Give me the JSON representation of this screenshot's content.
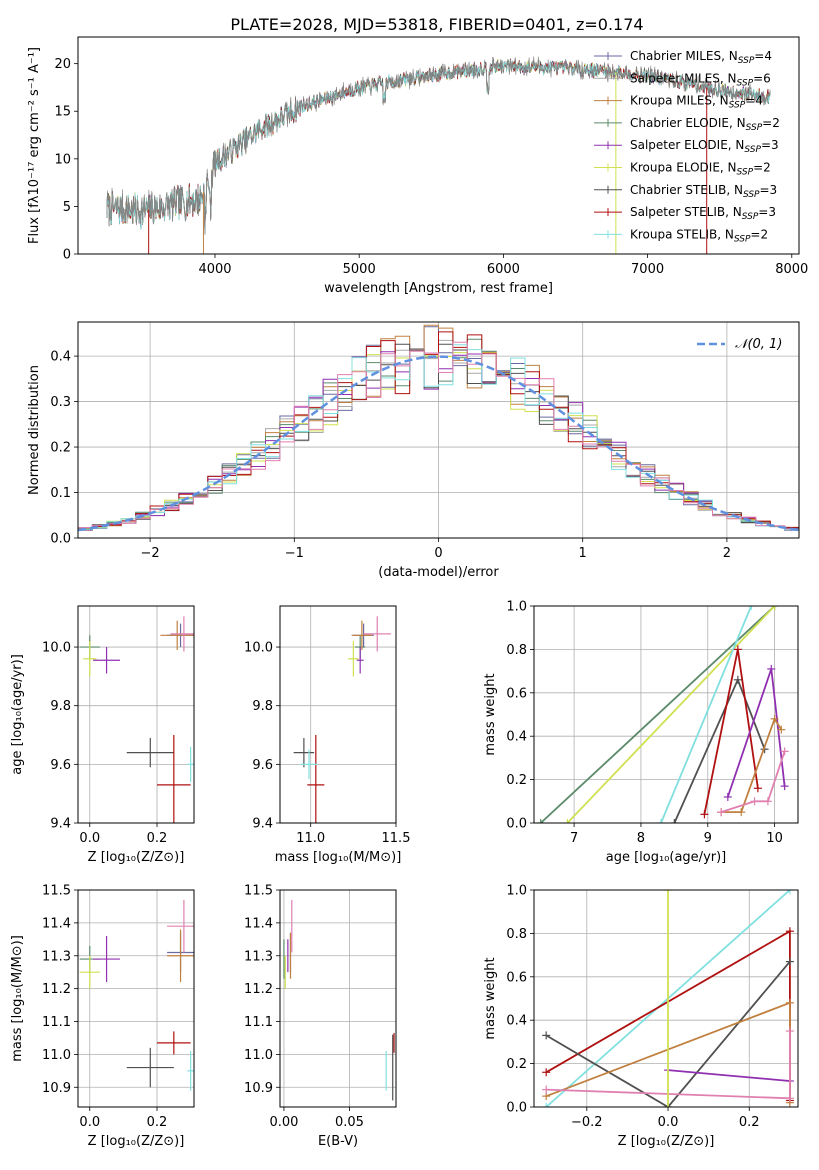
{
  "title": "PLATE=2028, MJD=53818, FIBERID=0401, z=0.174",
  "colors": {
    "chabrier_miles": "#6a6aa0",
    "salpeter_miles": "#a9a9a9",
    "kroupa_miles": "#c08040",
    "chabrier_elodie": "#5a8a6a",
    "salpeter_elodie": "#9030b0",
    "kroupa_elodie": "#d0e050",
    "chabrier_stelib": "#505050",
    "salpeter_stelib": "#b01010",
    "kroupa_stelib": "#80e0e0",
    "pink": "#e080b0",
    "normal_curve": "#6090e0"
  },
  "chart_data": [
    {
      "id": "spectrum",
      "type": "line",
      "title": "PLATE=2028, MJD=53818, FIBERID=0401, z=0.174",
      "xlabel": "wavelength [Angstrom, rest frame]",
      "ylabel": "Flux [fλ10⁻¹⁷ erg cm⁻² s⁻¹ A⁻¹]",
      "xlim": [
        3050,
        8050
      ],
      "ylim": [
        0,
        22.8
      ],
      "xticks": [
        4000,
        5000,
        6000,
        7000,
        8000
      ],
      "yticks": [
        0,
        5,
        10,
        15,
        20
      ],
      "legend_position": "upper-right",
      "continuum": {
        "x": [
          3250,
          3500,
          3700,
          3900,
          4000,
          4300,
          4600,
          5000,
          5500,
          6000,
          6500,
          7000,
          7500,
          7850
        ],
        "y": [
          4.8,
          4.5,
          5.2,
          5.8,
          9.5,
          13,
          15.5,
          17.5,
          18.8,
          19.8,
          19.5,
          18.8,
          17.2,
          16.5
        ]
      },
      "series": [
        {
          "name": "Chabrier MILES, N_SSP=4",
          "color_key": "chabrier_miles"
        },
        {
          "name": "Salpeter MILES, N_SSP=6",
          "color_key": "salpeter_miles"
        },
        {
          "name": "Kroupa MILES, N_SSP=4",
          "color_key": "kroupa_miles"
        },
        {
          "name": "Chabrier ELODIE, N_SSP=2",
          "color_key": "chabrier_elodie"
        },
        {
          "name": "Salpeter ELODIE, N_SSP=3",
          "color_key": "salpeter_elodie"
        },
        {
          "name": "Kroupa ELODIE, N_SSP=2",
          "color_key": "kroupa_elodie"
        },
        {
          "name": "Chabrier STELIB, N_SSP=3",
          "color_key": "chabrier_stelib"
        },
        {
          "name": "Salpeter STELIB, N_SSP=3",
          "color_key": "salpeter_stelib"
        },
        {
          "name": "Kroupa STELIB, N_SSP=2",
          "color_key": "kroupa_stelib"
        }
      ]
    },
    {
      "id": "residuals",
      "type": "line",
      "xlabel": "(data-model)/error",
      "ylabel": "Normed distribution",
      "xlim": [
        -2.5,
        2.5
      ],
      "ylim": [
        0,
        0.475
      ],
      "xticks": [
        -2,
        -1,
        0,
        1,
        2
      ],
      "yticks": [
        0.0,
        0.1,
        0.2,
        0.3,
        0.4
      ],
      "grid": true,
      "legend_position": "upper-right",
      "reference": {
        "name": "𝒩(0, 1)",
        "mean": 0,
        "sigma": 1,
        "color_key": "normal_curve"
      },
      "histogram": {
        "bin_width": 0.1,
        "n_series": 9,
        "spread": 0.045
      }
    },
    {
      "id": "age_vs_Z",
      "type": "scatter",
      "xlabel": "Z [log₁₀(Z/Z⊙)]",
      "ylabel": "age  [log₁₀(age/yr)]",
      "xlim": [
        -0.035,
        0.31
      ],
      "ylim": [
        9.4,
        10.14
      ],
      "xticks": [
        0.0,
        0.2
      ],
      "yticks": [
        9.4,
        9.6,
        9.8,
        10.0
      ],
      "grid": true,
      "points": [
        {
          "x": 0.0,
          "y": 10.0,
          "xerr": 0.03,
          "yerr": 0.04,
          "color_key": "chabrier_elodie"
        },
        {
          "x": 0.0,
          "y": 9.96,
          "xerr": 0.02,
          "yerr": 0.06,
          "color_key": "kroupa_elodie"
        },
        {
          "x": 0.05,
          "y": 9.955,
          "xerr": 0.04,
          "yerr": 0.045,
          "color_key": "salpeter_elodie"
        },
        {
          "x": 0.27,
          "y": 10.04,
          "xerr": 0.04,
          "yerr": 0.04,
          "color_key": "chabrier_miles"
        },
        {
          "x": 0.26,
          "y": 10.04,
          "xerr": 0.05,
          "yerr": 0.05,
          "color_key": "kroupa_miles"
        },
        {
          "x": 0.28,
          "y": 10.045,
          "xerr": 0.04,
          "yerr": 0.06,
          "color_key": "pink"
        },
        {
          "x": 0.18,
          "y": 9.64,
          "xerr": 0.07,
          "yerr": 0.05,
          "color_key": "chabrier_stelib"
        },
        {
          "x": 0.25,
          "y": 9.53,
          "xerr": 0.05,
          "yerr": 0.17,
          "color_key": "salpeter_stelib"
        },
        {
          "x": 0.3,
          "y": 9.6,
          "xerr": 0.01,
          "yerr": 0.06,
          "color_key": "kroupa_stelib"
        }
      ]
    },
    {
      "id": "age_vs_mass",
      "type": "scatter",
      "xlabel": "mass [log₁₀(M/M⊙)]",
      "ylabel": "",
      "xlim": [
        10.82,
        11.5
      ],
      "ylim": [
        9.4,
        10.14
      ],
      "xticks": [
        11.0,
        11.5
      ],
      "yticks": [
        9.4,
        9.6,
        9.8,
        10.0
      ],
      "grid": true,
      "points": [
        {
          "x": 11.29,
          "y": 10.0,
          "xerr": 0.03,
          "yerr": 0.04,
          "color_key": "chabrier_elodie"
        },
        {
          "x": 11.25,
          "y": 9.96,
          "xerr": 0.03,
          "yerr": 0.06,
          "color_key": "kroupa_elodie"
        },
        {
          "x": 11.29,
          "y": 9.955,
          "xerr": 0.02,
          "yerr": 0.045,
          "color_key": "salpeter_elodie"
        },
        {
          "x": 11.31,
          "y": 10.04,
          "xerr": 0.06,
          "yerr": 0.04,
          "color_key": "chabrier_miles"
        },
        {
          "x": 11.3,
          "y": 10.04,
          "xerr": 0.06,
          "yerr": 0.05,
          "color_key": "kroupa_miles"
        },
        {
          "x": 11.39,
          "y": 10.045,
          "xerr": 0.08,
          "yerr": 0.06,
          "color_key": "pink"
        },
        {
          "x": 10.96,
          "y": 9.64,
          "xerr": 0.06,
          "yerr": 0.05,
          "color_key": "chabrier_stelib"
        },
        {
          "x": 11.03,
          "y": 9.53,
          "xerr": 0.05,
          "yerr": 0.17,
          "color_key": "salpeter_stelib"
        },
        {
          "x": 10.99,
          "y": 9.6,
          "xerr": 0.05,
          "yerr": 0.05,
          "color_key": "kroupa_stelib"
        }
      ]
    },
    {
      "id": "massweight_vs_age",
      "type": "line",
      "xlabel": "age  [log₁₀(age/yr)]",
      "ylabel": "mass weight",
      "xlim": [
        6.4,
        10.35
      ],
      "ylim": [
        0,
        1.0
      ],
      "xticks": [
        7,
        8,
        9,
        10
      ],
      "yticks": [
        0.0,
        0.2,
        0.4,
        0.6,
        0.8,
        1.0
      ],
      "grid": true,
      "series": [
        {
          "color_key": "chabrier_elodie",
          "x": [
            6.5,
            10.0
          ],
          "y": [
            0.0,
            1.0
          ]
        },
        {
          "color_key": "kroupa_elodie",
          "x": [
            6.9,
            10.0
          ],
          "y": [
            0.0,
            1.0
          ]
        },
        {
          "color_key": "kroupa_stelib",
          "x": [
            8.3,
            9.65
          ],
          "y": [
            0.0,
            1.0
          ]
        },
        {
          "color_key": "chabrier_stelib",
          "x": [
            8.5,
            9.45,
            9.85
          ],
          "y": [
            0.0,
            0.66,
            0.34
          ]
        },
        {
          "color_key": "salpeter_stelib",
          "x": [
            8.95,
            9.45,
            9.75
          ],
          "y": [
            0.04,
            0.8,
            0.16
          ]
        },
        {
          "color_key": "salpeter_elodie",
          "x": [
            9.3,
            9.95,
            10.15
          ],
          "y": [
            0.12,
            0.71,
            0.17
          ]
        },
        {
          "color_key": "kroupa_miles",
          "x": [
            9.2,
            9.5,
            10.0,
            10.1
          ],
          "y": [
            0.05,
            0.05,
            0.48,
            0.43
          ]
        },
        {
          "color_key": "pink",
          "x": [
            9.2,
            9.7,
            9.9,
            10.15
          ],
          "y": [
            0.05,
            0.1,
            0.1,
            0.33
          ]
        }
      ]
    },
    {
      "id": "mass_vs_Z",
      "type": "scatter",
      "xlabel": "Z [log₁₀(Z/Z⊙)]",
      "ylabel": "mass [log₁₀(M/M⊙)]",
      "xlim": [
        -0.035,
        0.31
      ],
      "ylim": [
        10.84,
        11.5
      ],
      "xticks": [
        0.0,
        0.2
      ],
      "yticks": [
        10.9,
        11.0,
        11.1,
        11.2,
        11.3,
        11.4,
        11.5
      ],
      "grid": true,
      "points": [
        {
          "x": 0.0,
          "y": 11.29,
          "xerr": 0.03,
          "yerr": 0.04,
          "color_key": "chabrier_elodie"
        },
        {
          "x": 0.0,
          "y": 11.25,
          "xerr": 0.03,
          "yerr": 0.05,
          "color_key": "kroupa_elodie"
        },
        {
          "x": 0.05,
          "y": 11.29,
          "xerr": 0.04,
          "yerr": 0.07,
          "color_key": "salpeter_elodie"
        },
        {
          "x": 0.27,
          "y": 11.31,
          "xerr": 0.04,
          "yerr": 0.06,
          "color_key": "chabrier_miles"
        },
        {
          "x": 0.27,
          "y": 11.3,
          "xerr": 0.04,
          "yerr": 0.08,
          "color_key": "kroupa_miles"
        },
        {
          "x": 0.28,
          "y": 11.39,
          "xerr": 0.05,
          "yerr": 0.08,
          "color_key": "pink"
        },
        {
          "x": 0.18,
          "y": 10.96,
          "xerr": 0.07,
          "yerr": 0.06,
          "color_key": "chabrier_stelib"
        },
        {
          "x": 0.25,
          "y": 11.035,
          "xerr": 0.05,
          "yerr": 0.035,
          "color_key": "salpeter_stelib"
        },
        {
          "x": 0.3,
          "y": 10.95,
          "xerr": 0.01,
          "yerr": 0.06,
          "color_key": "kroupa_stelib"
        }
      ]
    },
    {
      "id": "mass_vs_EBV",
      "type": "scatter",
      "xlabel": "E(B-V)",
      "ylabel": "",
      "xlim": [
        -0.003,
        0.0855
      ],
      "ylim": [
        10.84,
        11.5
      ],
      "xticks": [
        0.0,
        0.05
      ],
      "yticks": [
        10.9,
        11.0,
        11.1,
        11.2,
        11.3,
        11.4,
        11.5
      ],
      "grid": true,
      "points": [
        {
          "x": 0.0,
          "y": 11.29,
          "yerr": 0.06,
          "color_key": "chabrier_elodie"
        },
        {
          "x": 0.001,
          "y": 11.25,
          "yerr": 0.05,
          "color_key": "kroupa_elodie"
        },
        {
          "x": 0.003,
          "y": 11.3,
          "yerr": 0.05,
          "color_key": "salpeter_elodie"
        },
        {
          "x": 0.005,
          "y": 11.31,
          "yerr": 0.06,
          "color_key": "chabrier_miles"
        },
        {
          "x": 0.005,
          "y": 11.3,
          "yerr": 0.07,
          "color_key": "kroupa_miles"
        },
        {
          "x": 0.006,
          "y": 11.39,
          "yerr": 0.08,
          "color_key": "pink"
        },
        {
          "x": 0.083,
          "y": 10.96,
          "yerr": 0.1,
          "color_key": "chabrier_stelib"
        },
        {
          "x": 0.084,
          "y": 11.035,
          "yerr": 0.03,
          "color_key": "salpeter_stelib"
        },
        {
          "x": 0.078,
          "y": 10.95,
          "yerr": 0.06,
          "color_key": "kroupa_stelib"
        }
      ]
    },
    {
      "id": "massweight_vs_Z",
      "type": "line",
      "xlabel": "Z [log₁₀(Z/Z⊙)]",
      "ylabel": "mass weight",
      "xlim": [
        -0.33,
        0.32
      ],
      "ylim": [
        0,
        1.0
      ],
      "xticks": [
        -0.2,
        0.0,
        0.2
      ],
      "yticks": [
        0.0,
        0.2,
        0.4,
        0.6,
        0.8,
        1.0
      ],
      "grid": true,
      "series": [
        {
          "color_key": "kroupa_stelib",
          "x": [
            -0.3,
            0.3
          ],
          "y": [
            0.0,
            1.0
          ]
        },
        {
          "color_key": "salpeter_stelib",
          "x": [
            -0.3,
            0.3,
            0.3
          ],
          "y": [
            0.16,
            0.81,
            0.03
          ]
        },
        {
          "color_key": "chabrier_stelib",
          "x": [
            -0.3,
            0.0,
            0.3
          ],
          "y": [
            0.33,
            0.0,
            0.67
          ]
        },
        {
          "color_key": "kroupa_miles",
          "x": [
            -0.3,
            0.3,
            0.3
          ],
          "y": [
            0.05,
            0.48,
            0.02
          ]
        },
        {
          "color_key": "salpeter_elodie",
          "x": [
            0.0,
            0.3
          ],
          "y": [
            0.17,
            0.12
          ]
        },
        {
          "color_key": "pink",
          "x": [
            -0.3,
            0.3,
            0.3
          ],
          "y": [
            0.08,
            0.04,
            0.35
          ]
        },
        {
          "color_key": "kroupa_elodie",
          "x": [
            0.0,
            0.0
          ],
          "y": [
            0.0,
            1.0
          ]
        }
      ]
    }
  ]
}
